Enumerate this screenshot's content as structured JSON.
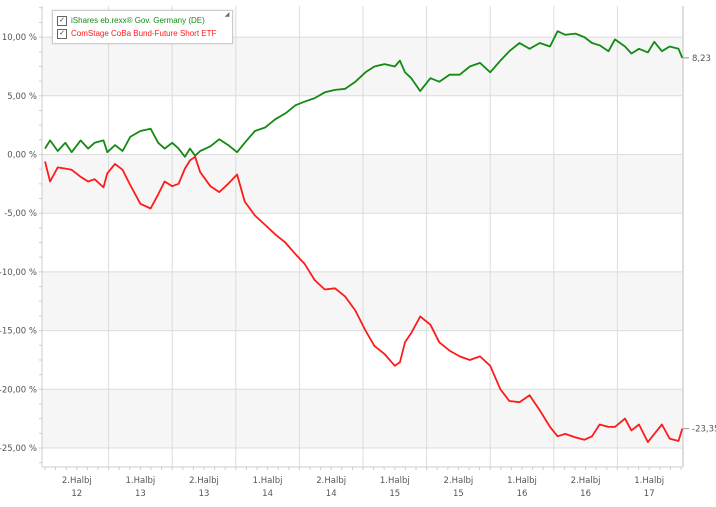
{
  "chart_data": {
    "type": "line",
    "title": "",
    "xlabel": "",
    "ylabel": "",
    "x_unit": "decimal year",
    "ylim": [
      -27,
      12.5
    ],
    "xlim": [
      2012.5,
      2017.53
    ],
    "y_ticks": [
      10,
      5,
      0,
      -5,
      -10,
      -15,
      -20,
      -25
    ],
    "y_tick_labels": [
      "10,00 %",
      "5,00 %",
      "0,00 %",
      "-5,00 %",
      "-10,00 %",
      "-15,00 %",
      "-20,00 %",
      "-25,00 %"
    ],
    "x_ticks": [
      2013.0,
      2013.5,
      2014.0,
      2014.5,
      2015.0,
      2015.5,
      2016.0,
      2016.5,
      2017.0
    ],
    "x_tick_labels": [
      {
        "pos": 2012.75,
        "line1": "2.Halbj",
        "line2": "12"
      },
      {
        "pos": 2013.25,
        "line1": "1.Halbj",
        "line2": "13"
      },
      {
        "pos": 2013.75,
        "line1": "2.Halbj",
        "line2": "13"
      },
      {
        "pos": 2014.25,
        "line1": "1.Halbj",
        "line2": "14"
      },
      {
        "pos": 2014.75,
        "line1": "2.Halbj",
        "line2": "14"
      },
      {
        "pos": 2015.25,
        "line1": "1.Halbj",
        "line2": "15"
      },
      {
        "pos": 2015.75,
        "line1": "2.Halbj",
        "line2": "15"
      },
      {
        "pos": 2016.25,
        "line1": "1.Halbj",
        "line2": "16"
      },
      {
        "pos": 2016.75,
        "line1": "2.Halbj",
        "line2": "16"
      },
      {
        "pos": 2017.25,
        "line1": "1.Halbj",
        "line2": "17"
      }
    ],
    "grid": true,
    "legend_position": "top-left",
    "x": [
      2012.5,
      2012.54,
      2012.6,
      2012.66,
      2012.71,
      2012.78,
      2012.84,
      2012.89,
      2012.96,
      2012.99,
      2013.05,
      2013.11,
      2013.17,
      2013.25,
      2013.33,
      2013.39,
      2013.44,
      2013.5,
      2013.55,
      2013.6,
      2013.64,
      2013.68,
      2013.72,
      2013.8,
      2013.87,
      2013.94,
      2014.01,
      2014.07,
      2014.15,
      2014.23,
      2014.31,
      2014.39,
      2014.47,
      2014.54,
      2014.62,
      2014.7,
      2014.78,
      2014.86,
      2014.94,
      2015.02,
      2015.09,
      2015.17,
      2015.25,
      2015.29,
      2015.33,
      2015.38,
      2015.45,
      2015.53,
      2015.6,
      2015.68,
      2015.76,
      2015.84,
      2015.92,
      2016.0,
      2016.08,
      2016.15,
      2016.23,
      2016.31,
      2016.39,
      2016.47,
      2016.53,
      2016.59,
      2016.67,
      2016.74,
      2016.8,
      2016.86,
      2016.93,
      2016.98,
      2017.06,
      2017.11,
      2017.17,
      2017.24,
      2017.29,
      2017.35,
      2017.41,
      2017.48,
      2017.51
    ],
    "series": [
      {
        "name": "iShares eb.rexx® Gov. Germany (DE)",
        "color": "#138a13",
        "last_label": "8,23",
        "values": [
          0.5,
          1.2,
          0.3,
          1.0,
          0.2,
          1.2,
          0.5,
          1.0,
          1.2,
          0.2,
          0.8,
          0.3,
          1.5,
          2.0,
          2.2,
          1.0,
          0.5,
          1.0,
          0.5,
          -0.2,
          0.5,
          -0.1,
          0.3,
          0.7,
          1.3,
          0.8,
          0.2,
          1.0,
          2.0,
          2.3,
          3.0,
          3.5,
          4.2,
          4.5,
          4.8,
          5.3,
          5.5,
          5.6,
          6.2,
          7.0,
          7.5,
          7.7,
          7.5,
          8.0,
          7.0,
          6.5,
          5.4,
          6.5,
          6.2,
          6.8,
          6.8,
          7.5,
          7.8,
          7.0,
          8.0,
          8.8,
          9.5,
          9.0,
          9.5,
          9.2,
          10.5,
          10.2,
          10.3,
          10.0,
          9.5,
          9.3,
          8.8,
          9.8,
          9.2,
          8.6,
          9.0,
          8.7,
          9.6,
          8.8,
          9.2,
          9.0,
          8.23
        ]
      },
      {
        "name": "ComStage CoBa Bund-Future Short ETF",
        "color": "#ff1a1a",
        "last_label": "-23,35",
        "values": [
          -0.6,
          -2.3,
          -1.1,
          -1.2,
          -1.3,
          -1.9,
          -2.3,
          -2.1,
          -2.8,
          -1.6,
          -0.8,
          -1.3,
          -2.6,
          -4.2,
          -4.6,
          -3.4,
          -2.3,
          -2.7,
          -2.5,
          -1.2,
          -0.5,
          -0.2,
          -1.5,
          -2.7,
          -3.2,
          -2.5,
          -1.7,
          -4.0,
          -5.2,
          -6.0,
          -6.8,
          -7.5,
          -8.5,
          -9.3,
          -10.7,
          -11.5,
          -11.4,
          -12.1,
          -13.3,
          -15.0,
          -16.3,
          -17.0,
          -18.0,
          -17.7,
          -16.0,
          -15.2,
          -13.8,
          -14.5,
          -16.0,
          -16.7,
          -17.2,
          -17.5,
          -17.2,
          -18.0,
          -20.0,
          -21.0,
          -21.1,
          -20.5,
          -21.8,
          -23.2,
          -24.0,
          -23.8,
          -24.1,
          -24.3,
          -24.0,
          -23.0,
          -23.2,
          -23.2,
          -22.5,
          -23.5,
          -23.0,
          -24.5,
          -23.8,
          -23.0,
          -24.2,
          -24.4,
          -23.35
        ]
      }
    ]
  },
  "legend": {
    "items": [
      {
        "label": "iShares eb.rexx® Gov. Germany (DE)",
        "checked": true
      },
      {
        "label": "ComStage CoBa Bund-Future Short ETF",
        "checked": true
      }
    ]
  }
}
